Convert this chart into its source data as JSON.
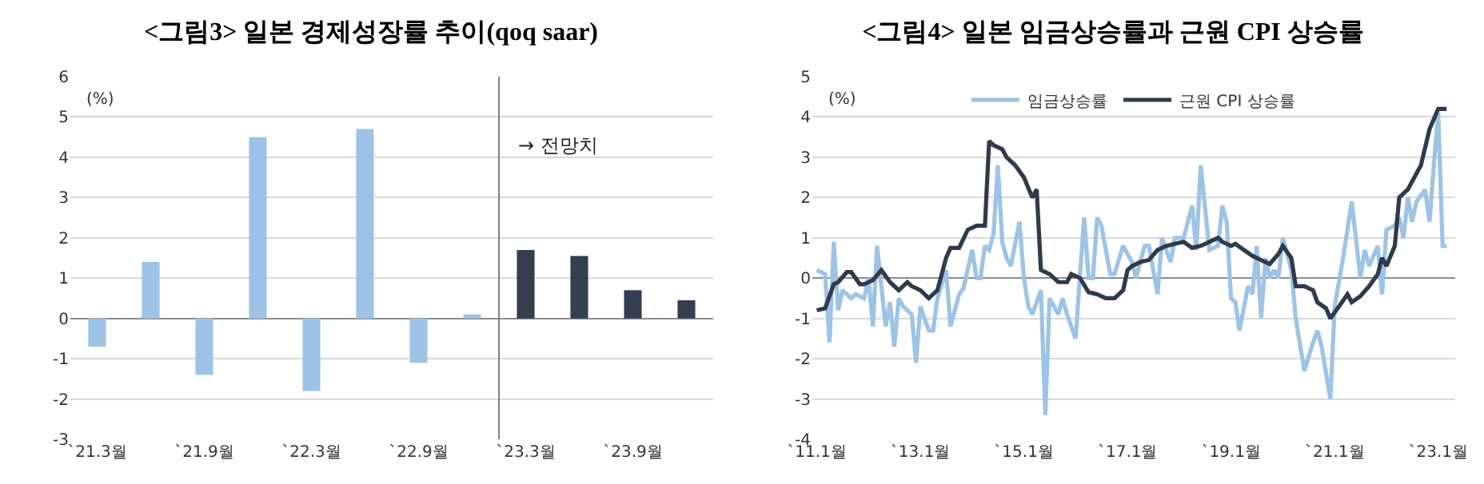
{
  "chart_data": [
    {
      "type": "bar",
      "title": "<그림3> 일본 경제성장률 추이(qoq saar)",
      "categories": [
        "`21.3월",
        null,
        "`21.9월",
        null,
        "`22.3월",
        null,
        "`22.9월",
        null,
        "`23.3월",
        null,
        "`23.9월",
        null
      ],
      "values": [
        -0.7,
        1.4,
        -1.4,
        4.5,
        -1.8,
        4.7,
        -1.1,
        0.1,
        1.7,
        1.55,
        0.7,
        0.45
      ],
      "colors": [
        "#9dc3e6",
        "#9dc3e6",
        "#9dc3e6",
        "#9dc3e6",
        "#9dc3e6",
        "#9dc3e6",
        "#9dc3e6",
        "#9dc3e6",
        "#333f50",
        "#333f50",
        "#333f50",
        "#333f50"
      ],
      "ylim": [
        -3,
        6
      ],
      "yticks": [
        -3,
        -2,
        -1,
        0,
        1,
        2,
        3,
        4,
        5,
        6
      ],
      "grid": "y",
      "annotations": [
        "(%)",
        "→ 전망치"
      ]
    },
    {
      "type": "line",
      "title": "<그림4> 일본 임금상승률과 근원 CPI 상승률",
      "series": [
        {
          "name": "임금상승률",
          "color": "#9dc3e6",
          "x": [
            "2011-01",
            "2011-03",
            "2011-04",
            "2011-05",
            "2011-06",
            "2011-07",
            "2011-09",
            "2011-10",
            "2011-12",
            "2012-01",
            "2012-02",
            "2012-03",
            "2012-05",
            "2012-06",
            "2012-07",
            "2012-08",
            "2012-09",
            "2012-11",
            "2012-12",
            "2013-01",
            "2013-03",
            "2013-04",
            "2013-05",
            "2013-07",
            "2013-08",
            "2013-10",
            "2013-11",
            "2014-01",
            "2014-02",
            "2014-03",
            "2014-04",
            "2014-05",
            "2014-06",
            "2014-07",
            "2014-08",
            "2014-09",
            "2014-10",
            "2014-12",
            "2015-01",
            "2015-02",
            "2015-03",
            "2015-05",
            "2015-06",
            "2015-07",
            "2015-09",
            "2015-10",
            "2015-11",
            "2016-01",
            "2016-02",
            "2016-03",
            "2016-04",
            "2016-05",
            "2016-06",
            "2016-07",
            "2016-09",
            "2016-10",
            "2016-12",
            "2017-02",
            "2017-03",
            "2017-05",
            "2017-06",
            "2017-08",
            "2017-09",
            "2017-11",
            "2017-12",
            "2018-02",
            "2018-04",
            "2018-05",
            "2018-06",
            "2018-08",
            "2018-10",
            "2018-11",
            "2018-12",
            "2019-01",
            "2019-02",
            "2019-03",
            "2019-05",
            "2019-06",
            "2019-07",
            "2019-08",
            "2019-09",
            "2019-10",
            "2019-11",
            "2019-12",
            "2020-01",
            "2020-03",
            "2020-04",
            "2020-06",
            "2020-08",
            "2020-09",
            "2020-10",
            "2020-12",
            "2021-01",
            "2021-03",
            "2021-04",
            "2021-05",
            "2021-07",
            "2021-08",
            "2021-09",
            "2021-11",
            "2021-12",
            "2022-01",
            "2022-03",
            "2022-04",
            "2022-05",
            "2022-06",
            "2022-07",
            "2022-08",
            "2022-10",
            "2022-11",
            "2022-12",
            "2023-01",
            "2023-02",
            "2023-03"
          ],
          "values": [
            0.2,
            0.1,
            -1.6,
            0.9,
            -0.8,
            -0.3,
            -0.5,
            -0.4,
            -0.5,
            0,
            -1.2,
            0.8,
            -1.2,
            -0.6,
            -1.7,
            -0.5,
            -0.7,
            -0.9,
            -2.1,
            -0.7,
            -1.3,
            -1.3,
            -0.5,
            0.2,
            -1.2,
            -0.4,
            -0.25,
            0.7,
            0,
            0,
            0.8,
            0.7,
            1.1,
            2.8,
            0.9,
            0.5,
            0.3,
            1.4,
            0,
            -0.7,
            -0.9,
            -0.3,
            -3.4,
            -0.5,
            -0.9,
            -0.5,
            -0.9,
            -1.5,
            0.1,
            1.5,
            0,
            0,
            1.5,
            1.3,
            0.1,
            0.1,
            0.8,
            0.4,
            0,
            0.8,
            0.8,
            -0.4,
            1.0,
            0.4,
            1.0,
            1.0,
            1.8,
            0.7,
            2.8,
            0.7,
            0.8,
            1.8,
            1.4,
            -0.5,
            -0.6,
            -1.3,
            -0.2,
            -0.4,
            0.8,
            -1.0,
            0.5,
            0,
            0.2,
            0,
            1.0,
            0.2,
            -1.0,
            -2.3,
            -1.6,
            -1.3,
            -1.7,
            -3.0,
            -0.7,
            0.5,
            1.2,
            1.9,
            0,
            0.7,
            0.3,
            0.8,
            -0.4,
            1.2,
            1.3,
            1.5,
            1.0,
            2.0,
            1.4,
            1.9,
            2.2,
            1.4,
            2.8,
            4.1,
            0.8,
            0.8
          ]
        },
        {
          "name": "근원 CPI 상승률",
          "color": "#2f3a4c",
          "x": [
            "2011-01",
            "2011-03",
            "2011-05",
            "2011-06",
            "2011-08",
            "2011-09",
            "2011-11",
            "2011-12",
            "2012-02",
            "2012-04",
            "2012-06",
            "2012-08",
            "2012-10",
            "2012-11",
            "2013-01",
            "2013-03",
            "2013-05",
            "2013-07",
            "2013-08",
            "2013-10",
            "2013-12",
            "2014-02",
            "2014-04",
            "2014-05",
            "2014-06",
            "2014-08",
            "2014-09",
            "2014-11",
            "2015-01",
            "2015-03",
            "2015-04",
            "2015-05",
            "2015-07",
            "2015-09",
            "2015-11",
            "2015-12",
            "2016-02",
            "2016-04",
            "2016-06",
            "2016-08",
            "2016-10",
            "2016-12",
            "2017-01",
            "2017-02",
            "2017-04",
            "2017-06",
            "2017-08",
            "2017-10",
            "2017-12",
            "2018-02",
            "2018-04",
            "2018-06",
            "2018-08",
            "2018-10",
            "2018-11",
            "2019-01",
            "2019-02",
            "2019-04",
            "2019-06",
            "2019-08",
            "2019-10",
            "2019-12",
            "2020-01",
            "2020-03",
            "2020-04",
            "2020-06",
            "2020-08",
            "2020-09",
            "2020-11",
            "2020-12",
            "2021-02",
            "2021-04",
            "2021-05",
            "2021-07",
            "2021-09",
            "2021-11",
            "2021-12",
            "2022-01",
            "2022-03",
            "2022-04",
            "2022-06",
            "2022-09",
            "2022-11",
            "2023-01",
            "2023-03"
          ],
          "values": [
            -0.8,
            -0.75,
            -0.15,
            -0.1,
            0.15,
            0.15,
            -0.15,
            -0.15,
            -0.05,
            0.2,
            -0.1,
            -0.3,
            -0.1,
            -0.2,
            -0.3,
            -0.5,
            -0.3,
            0.5,
            0.75,
            0.75,
            1.2,
            1.3,
            1.3,
            3.4,
            3.3,
            3.2,
            3.0,
            2.8,
            2.5,
            2.0,
            2.2,
            0.2,
            0.1,
            -0.1,
            -0.1,
            0.1,
            0,
            -0.35,
            -0.4,
            -0.5,
            -0.5,
            -0.3,
            0.2,
            0.3,
            0.4,
            0.45,
            0.7,
            0.8,
            0.85,
            0.9,
            0.75,
            0.8,
            0.9,
            1.0,
            0.9,
            0.8,
            0.85,
            0.7,
            0.55,
            0.45,
            0.35,
            0.6,
            0.8,
            0.5,
            -0.2,
            -0.2,
            -0.3,
            -0.6,
            -0.75,
            -1.0,
            -0.7,
            -0.4,
            -0.6,
            -0.45,
            -0.2,
            0.1,
            0.5,
            0.3,
            0.8,
            2.0,
            2.2,
            2.8,
            3.7,
            4.2,
            4.2
          ]
        }
      ],
      "xlim": [
        "2010-12-01",
        "2023-05-01"
      ],
      "xticks": [
        {
          "value": "2011-01",
          "label": "`11.1월"
        },
        {
          "value": "2013-01",
          "label": "`13.1월"
        },
        {
          "value": "2015-01",
          "label": "`15.1월"
        },
        {
          "value": "2017-01",
          "label": "`17.1월"
        },
        {
          "value": "2019-01",
          "label": "`19.1월"
        },
        {
          "value": "2021-01",
          "label": "`21.1월"
        },
        {
          "value": "2023-01",
          "label": "`23.1월"
        }
      ],
      "ylim": [
        -4,
        5
      ],
      "yticks": [
        -4,
        -3,
        -2,
        -1,
        0,
        1,
        2,
        3,
        4,
        5
      ],
      "grid": "y",
      "legend": "top",
      "annotations": [
        "(%)"
      ]
    }
  ]
}
